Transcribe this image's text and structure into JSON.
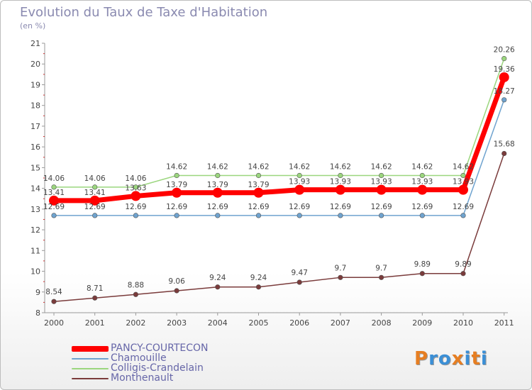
{
  "header": {
    "title": "Evolution du Taux de Taxe d'Habitation",
    "subtitle": "(en %)"
  },
  "logo": {
    "text": "Proxiti",
    "colors": [
      "#e67e22",
      "#3b8fd6",
      "#3b8fd6",
      "#e67e22",
      "#3b8fd6",
      "#e67e22",
      "#3b8fd6"
    ]
  },
  "chart_data": {
    "type": "line",
    "title": "Evolution du Taux de Taxe d'Habitation",
    "subtitle": "(en %)",
    "x": [
      "2000",
      "2001",
      "2002",
      "2003",
      "2004",
      "2005",
      "2006",
      "2007",
      "2008",
      "2009",
      "2010",
      "2011"
    ],
    "ylim": [
      8,
      21
    ],
    "yticks": [
      "8",
      "9",
      "10",
      "11",
      "12",
      "13",
      "14",
      "15",
      "16",
      "17",
      "18",
      "19",
      "20",
      "21"
    ],
    "grid": false,
    "legend_position": "bottom-left",
    "series": [
      {
        "name": "PANCY-COURTECON",
        "color": "#ff0000",
        "values": [
          13.41,
          13.41,
          13.63,
          13.79,
          13.79,
          13.79,
          13.93,
          13.93,
          13.93,
          13.93,
          13.93,
          19.36
        ],
        "labels": [
          "13.41",
          "13.41",
          "13.63",
          "13.79",
          "13.79",
          "13.79",
          "13.93",
          "13.93",
          "13.93",
          "13.93",
          "13.93",
          "19.36"
        ]
      },
      {
        "name": "Chamouille",
        "color": "#6fa3cf",
        "values": [
          12.69,
          12.69,
          12.69,
          12.69,
          12.69,
          12.69,
          12.69,
          12.69,
          12.69,
          12.69,
          12.69,
          18.27
        ],
        "labels": [
          "12.69",
          "12.69",
          "12.69",
          "12.69",
          "12.69",
          "12.69",
          "12.69",
          "12.69",
          "12.69",
          "12.69",
          "12.69",
          "18.27"
        ]
      },
      {
        "name": "Colligis-Crandelain",
        "color": "#9bd67e",
        "values": [
          14.06,
          14.06,
          14.06,
          14.62,
          14.62,
          14.62,
          14.62,
          14.62,
          14.62,
          14.62,
          14.62,
          20.26
        ],
        "labels": [
          "14.06",
          "14.06",
          "14.06",
          "14.62",
          "14.62",
          "14.62",
          "14.62",
          "14.62",
          "14.62",
          "14.62",
          "14.62",
          "20.26"
        ]
      },
      {
        "name": "Monthenault",
        "color": "#7a3b3b",
        "values": [
          8.54,
          8.71,
          8.88,
          9.06,
          9.24,
          9.24,
          9.47,
          9.7,
          9.7,
          9.89,
          9.89,
          15.68
        ],
        "labels": [
          "8.54",
          "8.71",
          "8.88",
          "9.06",
          "9.24",
          "9.24",
          "9.47",
          "9.7",
          "9.7",
          "9.89",
          "9.89",
          "15.68"
        ]
      }
    ]
  }
}
